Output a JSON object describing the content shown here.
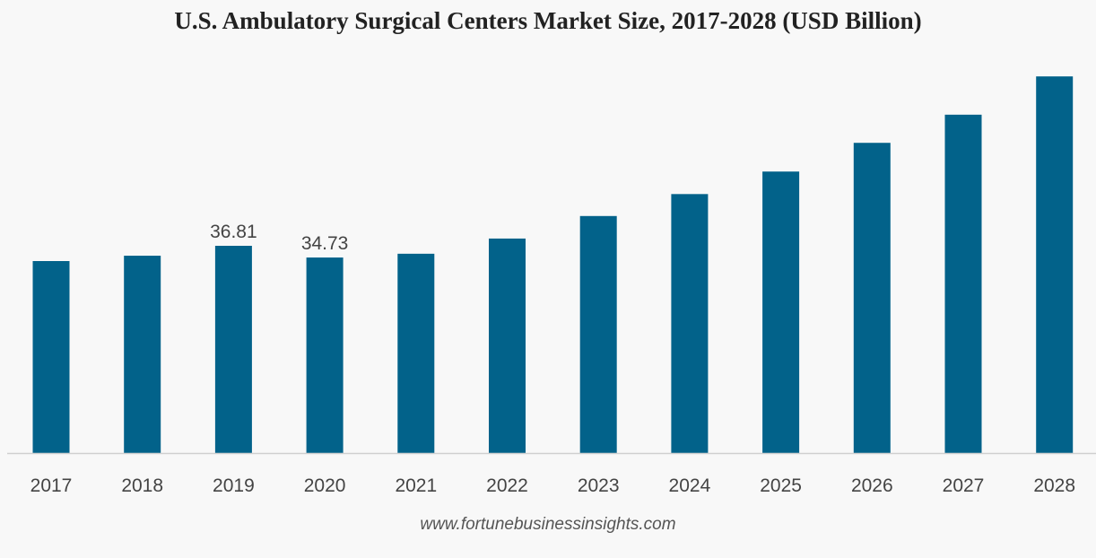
{
  "chart_data": {
    "type": "bar",
    "title": "U.S. Ambulatory Surgical Centers Market Size, 2017-2028 (USD Billion)",
    "categories": [
      "2017",
      "2018",
      "2019",
      "2020",
      "2021",
      "2022",
      "2023",
      "2024",
      "2025",
      "2026",
      "2027",
      "2028"
    ],
    "values": [
      34.1,
      35.05,
      36.81,
      34.73,
      35.4,
      38.1,
      42.1,
      46.0,
      50.0,
      55.1,
      60.1,
      66.9
    ],
    "data_labels": {
      "2019": "36.81",
      "2020": "34.73"
    },
    "ylim": [
      0,
      70
    ],
    "grid": false,
    "bar_color": "#02628a",
    "xlabel": "",
    "ylabel": ""
  },
  "source": "www.fortunebusinessinsights.com"
}
